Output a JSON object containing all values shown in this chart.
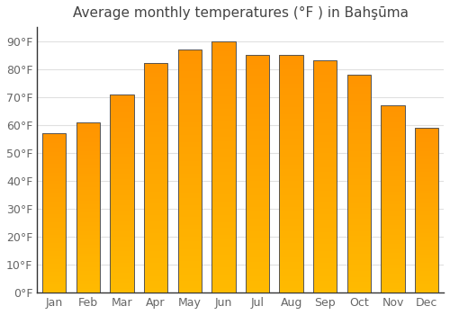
{
  "title": "Average monthly temperatures (°F ) in Bahşūma",
  "months": [
    "Jan",
    "Feb",
    "Mar",
    "Apr",
    "May",
    "Jun",
    "Jul",
    "Aug",
    "Sep",
    "Oct",
    "Nov",
    "Dec"
  ],
  "values": [
    57,
    61,
    71,
    82,
    87,
    90,
    85,
    85,
    83,
    78,
    67,
    59
  ],
  "bar_color_bottom": "#FFBB00",
  "bar_color_top": "#FF9500",
  "ylim": [
    0,
    95
  ],
  "yticks": [
    0,
    10,
    20,
    30,
    40,
    50,
    60,
    70,
    80,
    90
  ],
  "ytick_labels": [
    "0°F",
    "10°F",
    "20°F",
    "30°F",
    "40°F",
    "50°F",
    "60°F",
    "70°F",
    "80°F",
    "90°F"
  ],
  "background_color": "#FFFFFF",
  "grid_color": "#E0E0E0",
  "title_fontsize": 11,
  "tick_fontsize": 9,
  "bar_edge_color": "#555555",
  "bar_width": 0.7,
  "n_grad": 100
}
